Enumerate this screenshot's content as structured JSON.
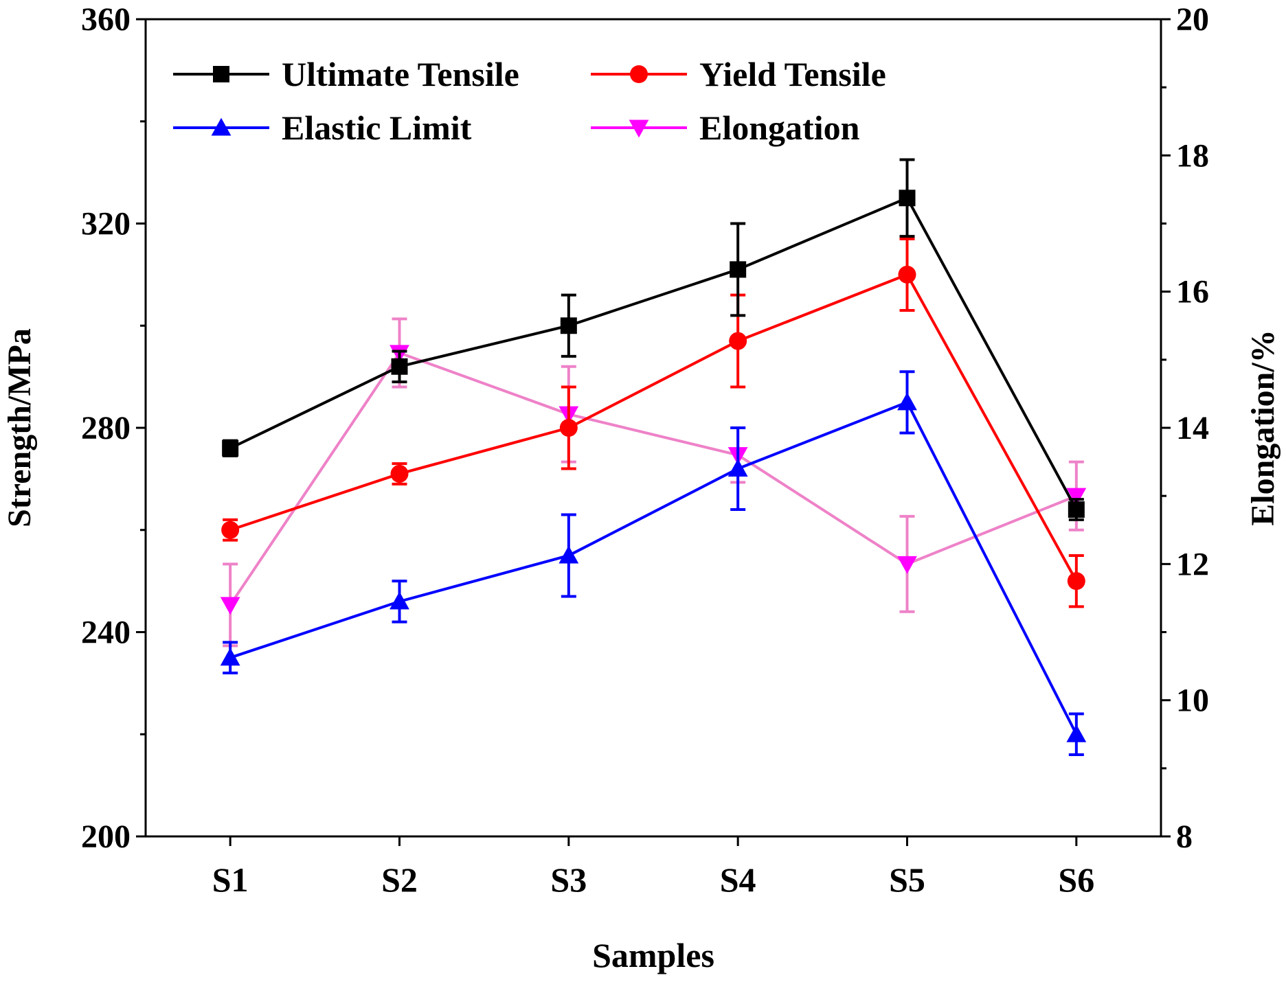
{
  "chart_data": {
    "type": "line",
    "xlabel": "Samples",
    "ylabel": "Strength/MPa",
    "y2label": "Elongation/%",
    "categories": [
      "S1",
      "S2",
      "S3",
      "S4",
      "S5",
      "S6"
    ],
    "ylim": [
      200,
      360
    ],
    "y2lim": [
      8,
      20
    ],
    "yticks": [
      200,
      240,
      280,
      320,
      360
    ],
    "y2ticks": [
      8,
      10,
      12,
      14,
      16,
      18,
      20
    ],
    "legend_position": "top-left",
    "series": [
      {
        "name": "Ultimate Tensile",
        "axis": "left",
        "marker": "square",
        "color": "#000000",
        "values": [
          276,
          292,
          300,
          311,
          325,
          264
        ],
        "errors": [
          1.5,
          3,
          6,
          9,
          7.5,
          2
        ]
      },
      {
        "name": "Yield Tensile",
        "axis": "left",
        "marker": "circle",
        "color": "#ff0000",
        "values": [
          260,
          271,
          280,
          297,
          310,
          250
        ],
        "errors": [
          2,
          2,
          8,
          9,
          7,
          5
        ]
      },
      {
        "name": "Elastic Limit",
        "axis": "left",
        "marker": "triangle-up",
        "color": "#0000ff",
        "values": [
          235,
          246,
          255,
          272,
          285,
          220
        ],
        "errors": [
          3,
          4,
          8,
          8,
          6,
          4
        ]
      },
      {
        "name": "Elongation",
        "axis": "right",
        "marker": "triangle-down",
        "color": "#ff00ff",
        "line_color": "#ee82c8",
        "values": [
          11.4,
          15.1,
          14.2,
          13.6,
          12.0,
          13.0
        ],
        "errors": [
          0.6,
          0.5,
          0.7,
          0.4,
          0.7,
          0.5
        ]
      }
    ]
  }
}
